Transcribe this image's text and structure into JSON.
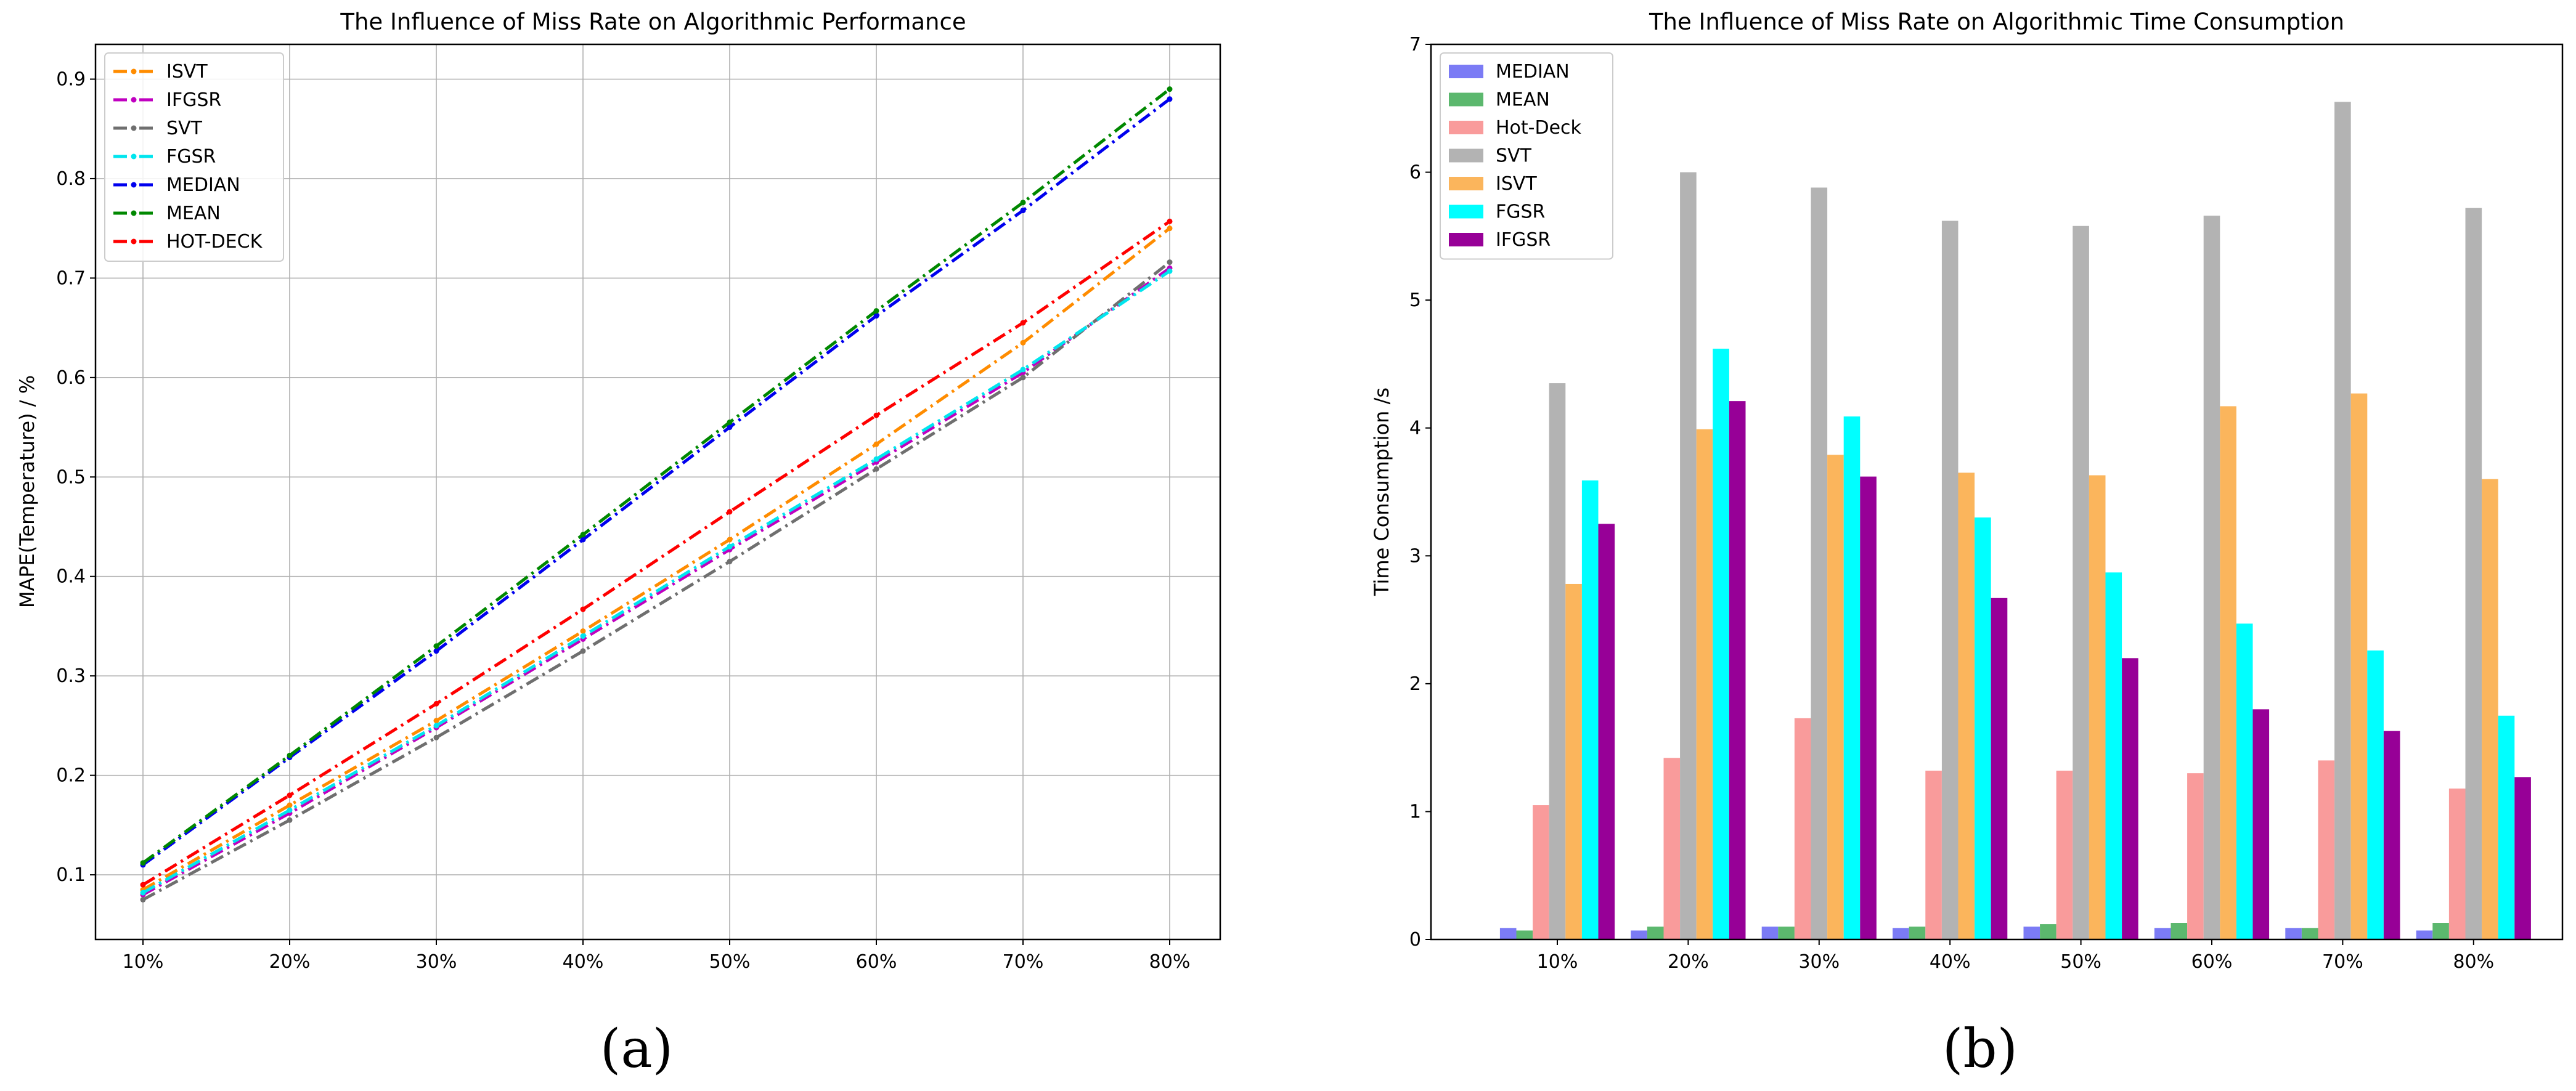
{
  "chart_data": [
    {
      "type": "line",
      "title": "The Influence of Miss Rate on Algorithmic Performance",
      "xlabel": "",
      "ylabel": "MAPE(Temperature) / %",
      "categories": [
        "10%",
        "20%",
        "30%",
        "40%",
        "50%",
        "60%",
        "70%",
        "80%"
      ],
      "ylim": [
        0.035,
        0.935
      ],
      "yticks": [
        "0.1",
        "0.2",
        "0.3",
        "0.4",
        "0.5",
        "0.6",
        "0.7",
        "0.8",
        "0.9"
      ],
      "grid": true,
      "legend": "top-left",
      "panel_label": "(a)",
      "series": [
        {
          "name": "ISVT",
          "color": "#ff8c00",
          "values": [
            0.085,
            0.17,
            0.255,
            0.345,
            0.437,
            0.533,
            0.635,
            0.75
          ]
        },
        {
          "name": "IFGSR",
          "color": "#c000c0",
          "values": [
            0.08,
            0.162,
            0.248,
            0.337,
            0.427,
            0.515,
            0.605,
            0.71
          ]
        },
        {
          "name": "SVT",
          "color": "#6f6f6f",
          "values": [
            0.075,
            0.155,
            0.238,
            0.325,
            0.415,
            0.508,
            0.6,
            0.716
          ]
        },
        {
          "name": "FGSR",
          "color": "#00e5ee",
          "values": [
            0.082,
            0.165,
            0.25,
            0.34,
            0.43,
            0.518,
            0.608,
            0.707
          ]
        },
        {
          "name": "MEDIAN",
          "color": "#0000ee",
          "values": [
            0.11,
            0.218,
            0.325,
            0.437,
            0.55,
            0.662,
            0.768,
            0.88
          ]
        },
        {
          "name": "MEAN",
          "color": "#008800",
          "values": [
            0.112,
            0.22,
            0.33,
            0.442,
            0.555,
            0.667,
            0.776,
            0.89
          ]
        },
        {
          "name": "HOT-DECK",
          "color": "#ff0000",
          "values": [
            0.09,
            0.18,
            0.272,
            0.367,
            0.465,
            0.562,
            0.655,
            0.757
          ]
        }
      ]
    },
    {
      "type": "bar",
      "title": "The Influence of Miss Rate on Algorithmic Time Consumption",
      "xlabel": "",
      "ylabel": "Time Consumption /s",
      "categories": [
        "10%",
        "20%",
        "30%",
        "40%",
        "50%",
        "60%",
        "70%",
        "80%"
      ],
      "ylim": [
        0,
        7
      ],
      "yticks": [
        "0",
        "1",
        "2",
        "3",
        "4",
        "5",
        "6",
        "7"
      ],
      "grid": false,
      "legend": "top-left",
      "panel_label": "(b)",
      "series": [
        {
          "name": "MEDIAN",
          "color": "#7b7bf5",
          "values": [
            0.09,
            0.07,
            0.1,
            0.09,
            0.1,
            0.09,
            0.09,
            0.07
          ]
        },
        {
          "name": "MEAN",
          "color": "#5cb86e",
          "values": [
            0.07,
            0.1,
            0.1,
            0.1,
            0.12,
            0.13,
            0.09,
            0.13
          ]
        },
        {
          "name": "Hot-Deck",
          "color": "#f99b9b",
          "values": [
            1.05,
            1.42,
            1.73,
            1.32,
            1.32,
            1.3,
            1.4,
            1.18
          ]
        },
        {
          "name": "SVT",
          "color": "#b3b3b3",
          "values": [
            4.35,
            6.0,
            5.88,
            5.62,
            5.58,
            5.66,
            6.55,
            5.72
          ]
        },
        {
          "name": "ISVT",
          "color": "#fbb55c",
          "values": [
            2.78,
            3.99,
            3.79,
            3.65,
            3.63,
            4.17,
            4.27,
            3.6
          ]
        },
        {
          "name": "FGSR",
          "color": "#00ffff",
          "values": [
            3.59,
            4.62,
            4.09,
            3.3,
            2.87,
            2.47,
            2.26,
            1.75
          ]
        },
        {
          "name": "IFGSR",
          "color": "#970097",
          "values": [
            3.25,
            4.21,
            3.62,
            2.67,
            2.2,
            1.8,
            1.63,
            1.27
          ]
        }
      ]
    }
  ]
}
